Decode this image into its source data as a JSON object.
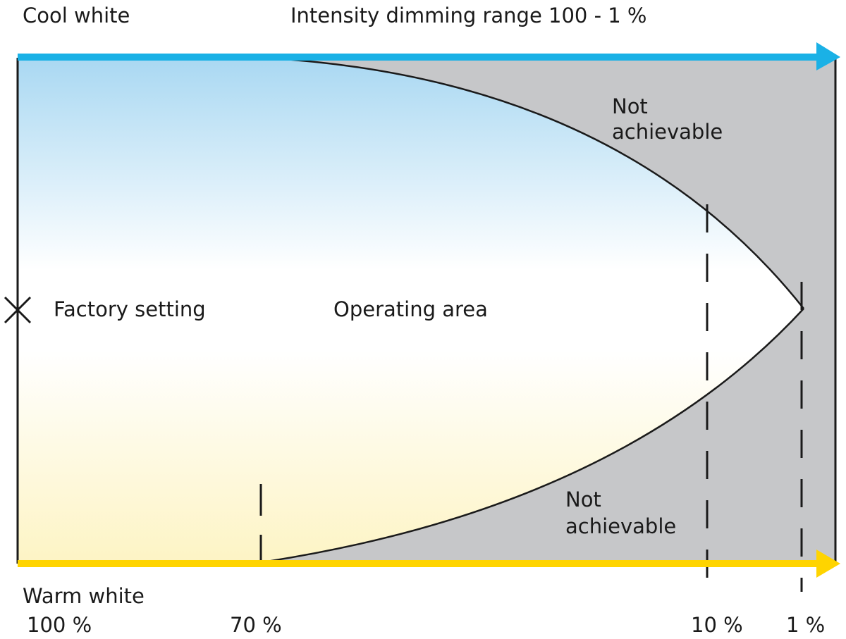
{
  "diagram": {
    "labels": {
      "cool_white": "Cool white",
      "title": "Intensity dimming range 100 - 1 %",
      "not_achievable_top_line1": "Not",
      "not_achievable_top_line2": "achievable",
      "factory_setting": "Factory setting",
      "operating_area": "Operating area",
      "not_achievable_bottom_line1": "Not",
      "not_achievable_bottom_line2": "achievable",
      "warm_white": "Warm white"
    },
    "axis_ticks": [
      "100 %",
      "70 %",
      "10 %",
      "1 %"
    ],
    "colors": {
      "cool_arrow": "#1ab1e6",
      "warm_arrow": "#ffd400",
      "not_achievable_fill": "#c6c7c9",
      "cool_gradient": "#a9d8f2",
      "warm_gradient": "#fdf4c4",
      "line": "#1a1a1a"
    }
  }
}
